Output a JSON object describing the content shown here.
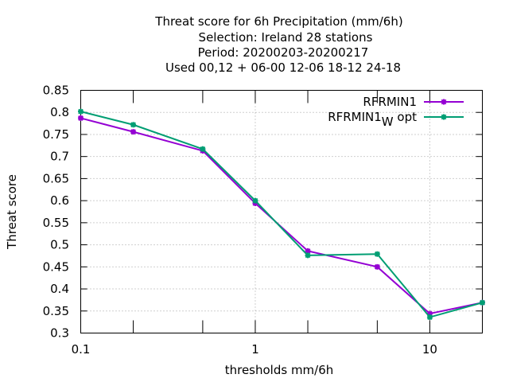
{
  "chart_data": {
    "type": "line",
    "title_lines": [
      "Threat score  for 6h Precipitation (mm/6h)",
      "Selection: Ireland      28 stations",
      "Period: 20200203-20200217",
      "Used  00,12  + 06-00 12-06 18-12 24-18"
    ],
    "xlabel": "thresholds mm/6h",
    "ylabel": "Threat score",
    "xscale": "log",
    "xlim": [
      0.1,
      20
    ],
    "ylim": [
      0.3,
      0.85
    ],
    "xticks": [
      {
        "value": 0.1,
        "label": "0.1"
      },
      {
        "value": 1,
        "label": "1"
      },
      {
        "value": 10,
        "label": "10"
      }
    ],
    "x_minor_ticks": [
      0.2,
      0.5,
      2,
      5,
      20
    ],
    "yticks": [
      {
        "value": 0.3,
        "label": "0.3"
      },
      {
        "value": 0.35,
        "label": "0.35"
      },
      {
        "value": 0.4,
        "label": "0.4"
      },
      {
        "value": 0.45,
        "label": "0.45"
      },
      {
        "value": 0.5,
        "label": "0.5"
      },
      {
        "value": 0.55,
        "label": "0.55"
      },
      {
        "value": 0.6,
        "label": "0.6"
      },
      {
        "value": 0.65,
        "label": "0.65"
      },
      {
        "value": 0.7,
        "label": "0.7"
      },
      {
        "value": 0.75,
        "label": "0.75"
      },
      {
        "value": 0.8,
        "label": "0.8"
      },
      {
        "value": 0.85,
        "label": "0.85"
      }
    ],
    "grid": true,
    "legend_position": "top-right",
    "x": [
      0.1,
      0.2,
      0.5,
      1,
      2,
      5,
      10,
      20
    ],
    "series": [
      {
        "name": "RFRMIN1",
        "legend_main": "RFRMIN1",
        "legend_sub": "",
        "legend_suffix": "",
        "color": "#9400d3",
        "values": [
          0.787,
          0.756,
          0.713,
          0.594,
          0.486,
          0.45,
          0.344,
          0.369
        ]
      },
      {
        "name": "RFRMIN1_W opt",
        "legend_main": "RFRMIN1",
        "legend_sub": "W",
        "legend_suffix": " opt",
        "color": "#009e73",
        "values": [
          0.802,
          0.772,
          0.717,
          0.6,
          0.476,
          0.479,
          0.336,
          0.369
        ]
      }
    ]
  }
}
